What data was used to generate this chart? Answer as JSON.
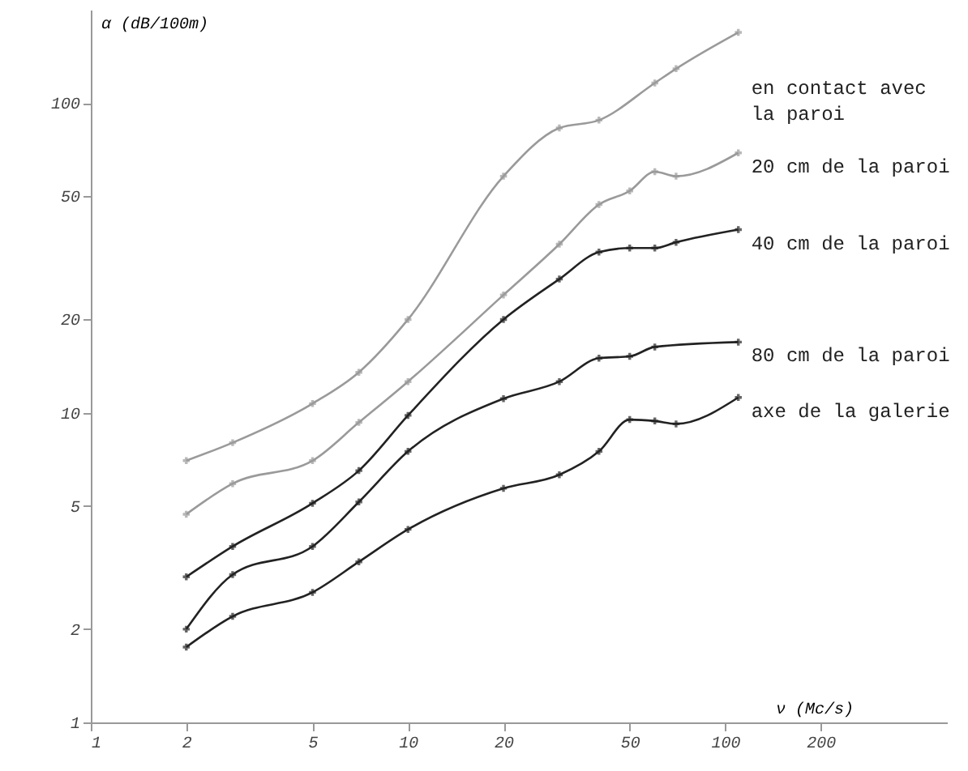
{
  "chart_data": {
    "type": "line",
    "xlabel": "ν (Mc/s)",
    "ylabel": "α (dB/100m)",
    "log": "xy",
    "xlim": [
      1,
      500
    ],
    "ylim": [
      1,
      200
    ],
    "xticks": [
      1,
      2,
      5,
      10,
      20,
      50,
      100,
      200
    ],
    "yticks": [
      1,
      2,
      5,
      10,
      20,
      50,
      100
    ],
    "grid": false,
    "marker": "cross",
    "line_style": "solid",
    "series": [
      {
        "name": "en contact avec la paroi",
        "color": "#9a9a9a",
        "x": [
          2,
          2.8,
          5,
          7,
          10,
          20,
          30,
          40,
          60,
          70,
          110
        ],
        "values": [
          7.0,
          8.0,
          10.7,
          13.5,
          20,
          58,
          83,
          88,
          116,
          129,
          169
        ]
      },
      {
        "name": "20 cm de la paroi",
        "color": "#9a9a9a",
        "x": [
          2,
          2.8,
          5,
          7,
          10,
          20,
          30,
          40,
          50,
          60,
          70,
          110
        ],
        "values": [
          4.7,
          5.9,
          7.0,
          9.3,
          12.6,
          24,
          35,
          47,
          52,
          60,
          58,
          69
        ]
      },
      {
        "name": "40 cm de la paroi",
        "color": "#222222",
        "x": [
          2,
          2.8,
          5,
          7,
          10,
          20,
          30,
          40,
          50,
          60,
          70,
          110
        ],
        "values": [
          2.95,
          3.7,
          5.1,
          6.5,
          9.8,
          20,
          27,
          33,
          34,
          34,
          35.5,
          39
        ]
      },
      {
        "name": "80 cm de la paroi",
        "color": "#222222",
        "x": [
          2,
          2.8,
          5,
          7,
          10,
          20,
          30,
          40,
          50,
          60,
          110
        ],
        "values": [
          2.0,
          3.0,
          3.7,
          5.15,
          7.5,
          11.1,
          12.6,
          15,
          15.2,
          16.3,
          16.9
        ]
      },
      {
        "name": "axe de la galerie",
        "color": "#222222",
        "x": [
          2,
          2.8,
          5,
          7,
          10,
          20,
          30,
          40,
          50,
          60,
          70,
          110
        ],
        "values": [
          1.75,
          2.2,
          2.63,
          3.3,
          4.2,
          5.7,
          6.3,
          7.5,
          9.5,
          9.4,
          9.2,
          11.2
        ]
      }
    ]
  }
}
